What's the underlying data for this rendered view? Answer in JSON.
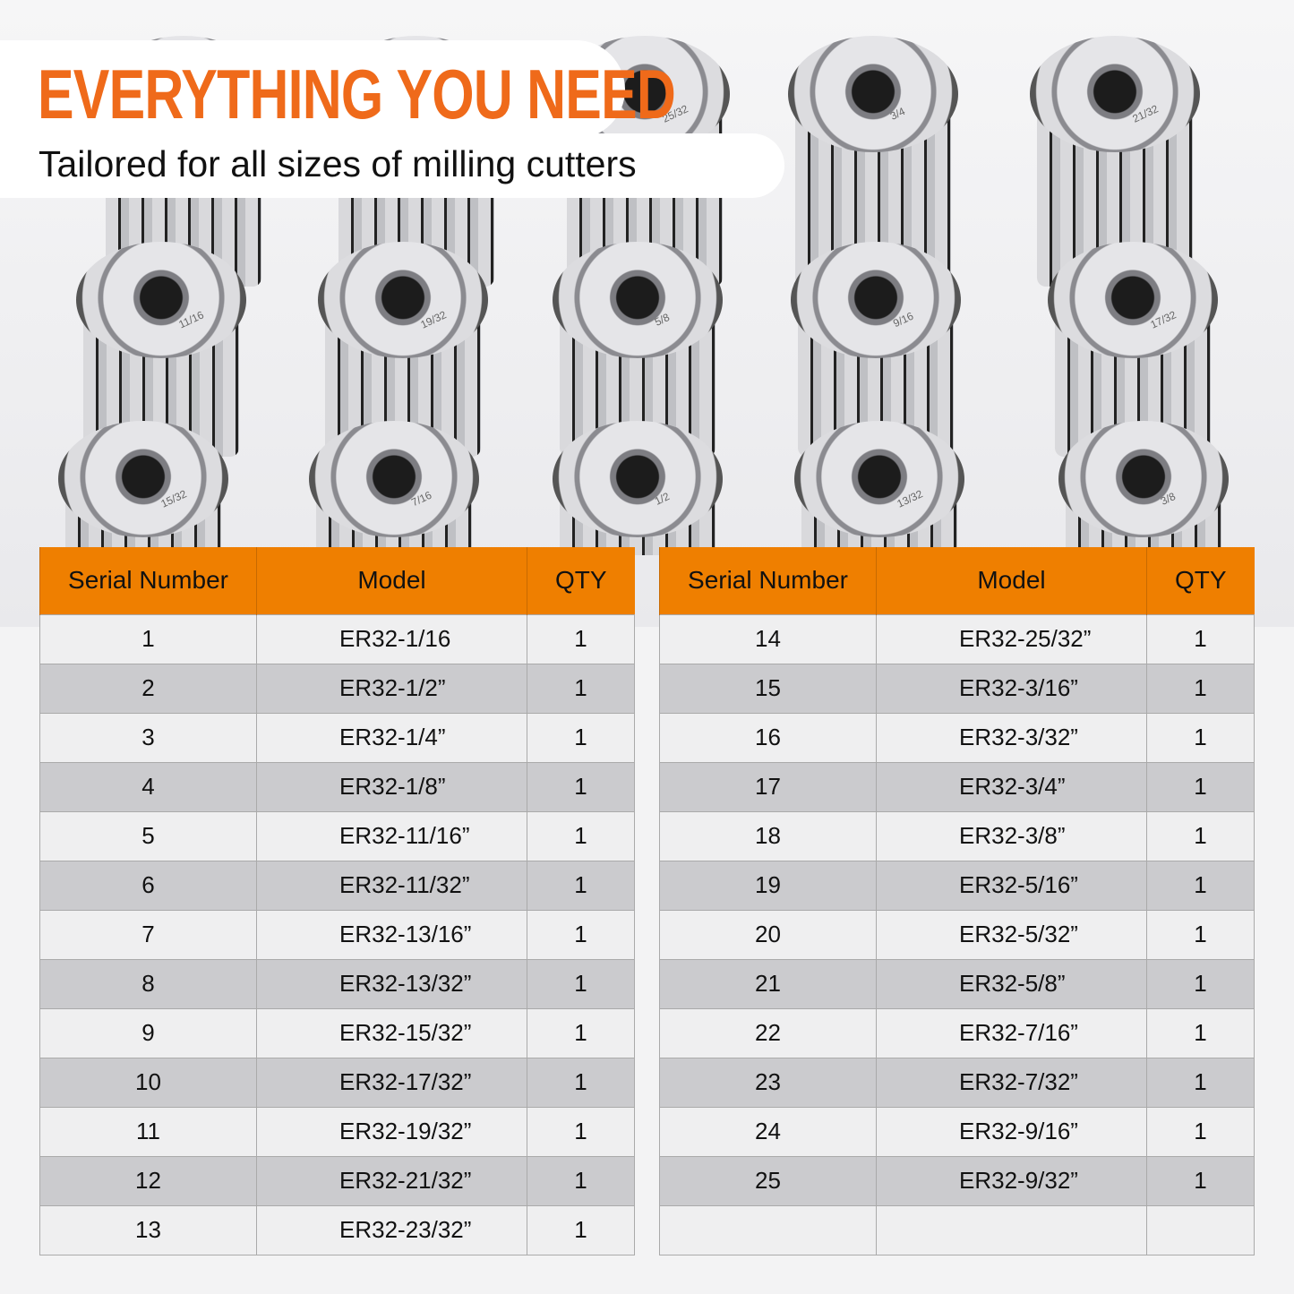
{
  "header": {
    "title": "EVERYTHING YOU NEED",
    "subtitle": "Tailored for all sizes of milling cutters"
  },
  "colors": {
    "accent": "#ef6a1a",
    "table_header": "#ef7f00"
  },
  "collet_labels": [
    "",
    "",
    "25/32",
    "3/4",
    "21/32",
    "11/16",
    "19/32",
    "5/8",
    "9/16",
    "17/32",
    "15/32",
    "7/16",
    "1/2",
    "13/32",
    "3/8"
  ],
  "table": {
    "headers": [
      "Serial Number",
      "Model",
      "QTY"
    ],
    "left": [
      [
        "1",
        "ER32-1/16",
        "1"
      ],
      [
        "2",
        "ER32-1/2”",
        "1"
      ],
      [
        "3",
        "ER32-1/4”",
        "1"
      ],
      [
        "4",
        "ER32-1/8”",
        "1"
      ],
      [
        "5",
        "ER32-11/16”",
        "1"
      ],
      [
        "6",
        "ER32-11/32”",
        "1"
      ],
      [
        "7",
        "ER32-13/16”",
        "1"
      ],
      [
        "8",
        "ER32-13/32”",
        "1"
      ],
      [
        "9",
        "ER32-15/32”",
        "1"
      ],
      [
        "10",
        "ER32-17/32”",
        "1"
      ],
      [
        "11",
        "ER32-19/32”",
        "1"
      ],
      [
        "12",
        "ER32-21/32”",
        "1"
      ],
      [
        "13",
        "ER32-23/32”",
        "1"
      ]
    ],
    "right": [
      [
        "14",
        "ER32-25/32”",
        "1"
      ],
      [
        "15",
        "ER32-3/16”",
        "1"
      ],
      [
        "16",
        "ER32-3/32”",
        "1"
      ],
      [
        "17",
        "ER32-3/4”",
        "1"
      ],
      [
        "18",
        "ER32-3/8”",
        "1"
      ],
      [
        "19",
        "ER32-5/16”",
        "1"
      ],
      [
        "20",
        "ER32-5/32”",
        "1"
      ],
      [
        "21",
        "ER32-5/8”",
        "1"
      ],
      [
        "22",
        "ER32-7/16”",
        "1"
      ],
      [
        "23",
        "ER32-7/32”",
        "1"
      ],
      [
        "24",
        "ER32-9/16”",
        "1"
      ],
      [
        "25",
        "ER32-9/32”",
        "1"
      ],
      [
        "",
        "",
        ""
      ]
    ]
  }
}
